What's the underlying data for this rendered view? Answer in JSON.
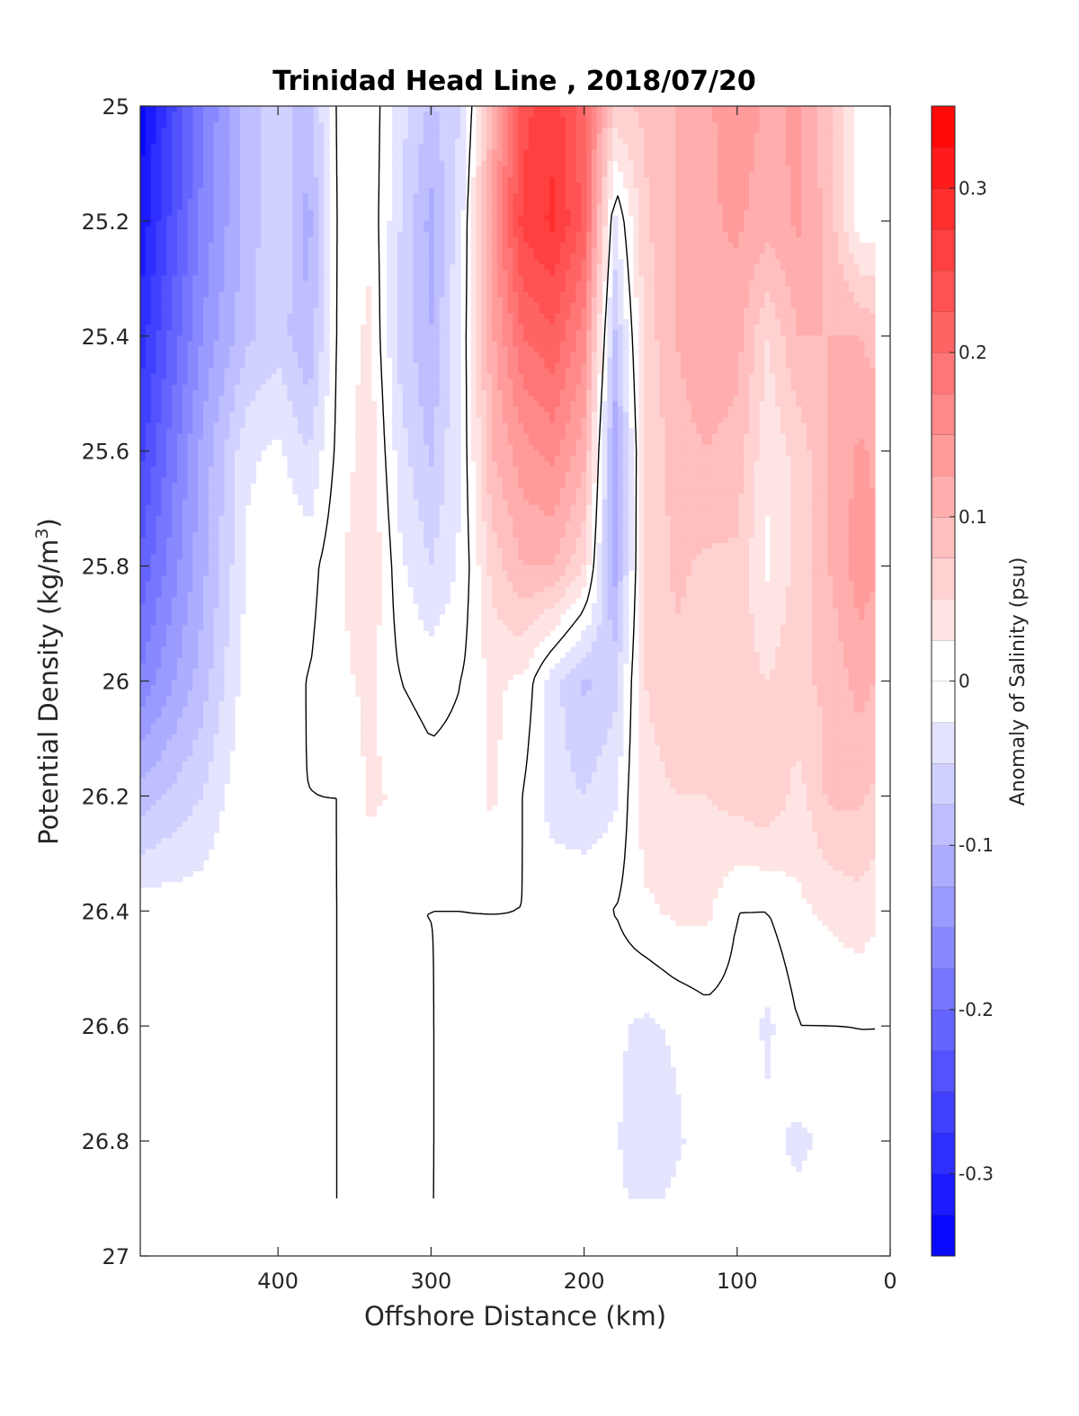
{
  "chart_data": {
    "type": "heatmap",
    "title": "Trinidad Head Line , 2018/07/20",
    "xlabel": "Offshore Distance (km)",
    "ylabel": "Potential Density (kg/m",
    "ylabel_sup": "3",
    "ylabel_close": ")",
    "xlim": [
      490,
      0
    ],
    "ylim": [
      27,
      25
    ],
    "x_reversed": true,
    "y_reversed": true,
    "x_ticks": [
      "400",
      "300",
      "200",
      "100",
      "0"
    ],
    "y_ticks": [
      "25",
      "25.2",
      "25.4",
      "25.6",
      "25.8",
      "26",
      "26.2",
      "26.4",
      "26.6",
      "26.8",
      "27"
    ],
    "colorbar": {
      "label": "Anomaly of Salinity (psu)",
      "range": [
        -0.35,
        0.35
      ],
      "step": 0.025,
      "ticks": [
        "0.3",
        "0.2",
        "0.1",
        "0",
        "-0.1",
        "-0.2",
        "-0.3"
      ],
      "negative_color": "#0000ff",
      "positive_color": "#ff0000",
      "zero_color": "#ffffff"
    },
    "contour_level": 0,
    "anomaly_grid": {
      "x": [
        490,
        450,
        420,
        400,
        380,
        360,
        340,
        320,
        300,
        280,
        260,
        240,
        220,
        200,
        180,
        160,
        140,
        120,
        100,
        80,
        60,
        40,
        20,
        10
      ],
      "y": [
        25.0,
        25.2,
        25.4,
        25.6,
        25.8,
        26.0,
        26.2,
        26.4,
        26.6,
        26.8,
        26.9
      ],
      "z": [
        [
          -0.34,
          -0.18,
          -0.09,
          -0.06,
          -0.09,
          0.01,
          0.02,
          -0.04,
          -0.08,
          -0.05,
          0.1,
          0.24,
          0.27,
          0.2,
          0.07,
          0.08,
          0.1,
          0.12,
          0.14,
          0.12,
          0.13,
          0.08,
          0.01,
          0.01
        ],
        [
          -0.32,
          -0.17,
          -0.09,
          -0.05,
          -0.11,
          0.01,
          0.02,
          -0.05,
          -0.11,
          -0.03,
          0.14,
          0.26,
          0.28,
          0.22,
          -0.03,
          0.07,
          0.1,
          0.12,
          0.13,
          0.11,
          0.13,
          0.09,
          0.01,
          0.01
        ],
        [
          -0.29,
          -0.15,
          -0.08,
          -0.06,
          -0.1,
          0.01,
          0.03,
          -0.06,
          -0.1,
          -0.02,
          0.12,
          0.2,
          0.22,
          0.16,
          -0.08,
          0.06,
          0.1,
          0.12,
          0.11,
          0.05,
          0.1,
          0.1,
          0.1,
          0.09
        ],
        [
          -0.26,
          -0.12,
          -0.03,
          -0.02,
          -0.05,
          0.01,
          0.04,
          -0.04,
          -0.08,
          -0.02,
          0.1,
          0.14,
          0.16,
          0.11,
          -0.12,
          0.05,
          0.09,
          0.1,
          0.09,
          0.03,
          0.06,
          0.1,
          0.13,
          0.12
        ],
        [
          -0.22,
          -0.11,
          -0.02,
          0.0,
          -0.01,
          0.02,
          0.05,
          -0.02,
          -0.05,
          -0.02,
          0.06,
          0.1,
          0.1,
          0.05,
          -0.11,
          0.05,
          0.08,
          0.07,
          0.07,
          0.02,
          0.06,
          0.1,
          0.14,
          0.13
        ],
        [
          -0.17,
          -0.09,
          -0.01,
          0.0,
          0.0,
          0.02,
          0.03,
          0.0,
          -0.01,
          0.0,
          0.03,
          0.02,
          -0.04,
          -0.08,
          -0.06,
          0.05,
          0.07,
          0.06,
          0.06,
          0.05,
          0.07,
          0.08,
          0.11,
          0.1
        ],
        [
          -0.09,
          -0.05,
          0.0,
          0.0,
          0.0,
          0.0,
          0.03,
          0.02,
          0.01,
          0.01,
          0.03,
          0.0,
          -0.04,
          -0.05,
          -0.03,
          0.04,
          0.05,
          0.05,
          0.06,
          0.07,
          0.04,
          0.08,
          0.08,
          0.07
        ],
        [
          -0.01,
          -0.01,
          0.0,
          0.0,
          0.0,
          0.0,
          0.01,
          0.0,
          0.0,
          0.0,
          0.0,
          0.0,
          0.0,
          0.0,
          0.0,
          0.02,
          0.03,
          0.03,
          0.0,
          0.0,
          0.02,
          0.03,
          0.04,
          0.03
        ],
        [
          0.0,
          0.0,
          0.0,
          0.0,
          0.0,
          0.0,
          0.01,
          0.02,
          0.0,
          0.0,
          0.0,
          0.0,
          0.0,
          0.0,
          -0.02,
          -0.03,
          -0.02,
          -0.01,
          -0.01,
          -0.03,
          0.0,
          0.0,
          0.0,
          0.0
        ],
        [
          0.0,
          0.0,
          0.0,
          0.0,
          0.0,
          0.0,
          0.01,
          0.02,
          0.0,
          0.0,
          0.0,
          0.0,
          0.0,
          0.0,
          -0.02,
          -0.05,
          -0.03,
          -0.01,
          0.0,
          -0.02,
          -0.03,
          -0.02,
          0.0,
          0.0
        ],
        [
          0.0,
          0.0,
          0.0,
          0.0,
          0.0,
          0.0,
          0.01,
          0.01,
          0.0,
          0.0,
          0.0,
          0.0,
          0.0,
          0.0,
          -0.02,
          -0.03,
          -0.02,
          0.0,
          0.0,
          -0.02,
          -0.02,
          -0.01,
          0.0,
          0.0
        ]
      ]
    }
  }
}
